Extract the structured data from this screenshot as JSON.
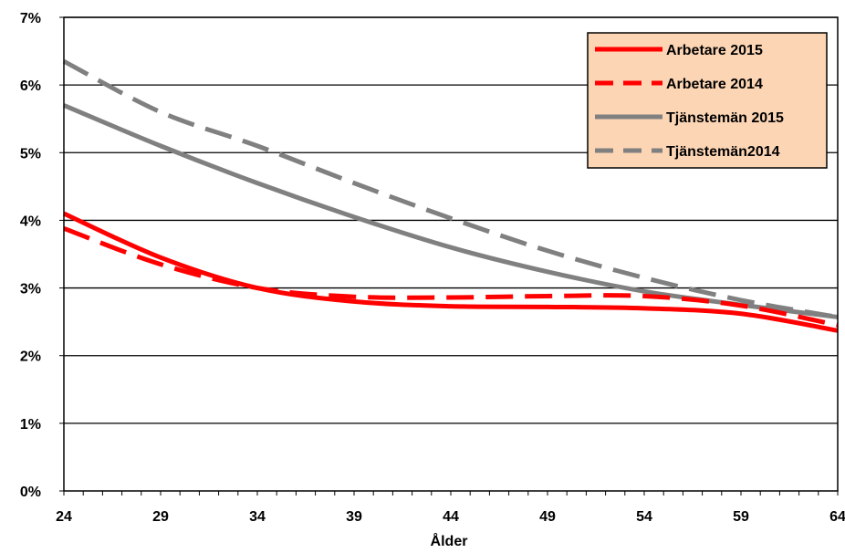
{
  "chart_data": {
    "type": "line",
    "xlabel": "Ålder",
    "ylabel": "",
    "title": "",
    "x_ticks": [
      24,
      29,
      34,
      39,
      44,
      49,
      54,
      59,
      64
    ],
    "y_ticks": [
      "0%",
      "1%",
      "2%",
      "3%",
      "4%",
      "5%",
      "6%",
      "7%"
    ],
    "xlim": [
      24,
      64
    ],
    "ylim": [
      0,
      7
    ],
    "grid": "horizontal major",
    "legend_position": "top-right",
    "x": [
      24,
      29,
      34,
      39,
      44,
      49,
      54,
      59,
      64
    ],
    "series": [
      {
        "name": "Arbetare 2015",
        "color": "#ff0000",
        "dash": "solid",
        "values": [
          4.1,
          3.45,
          3.0,
          2.8,
          2.73,
          2.72,
          2.7,
          2.62,
          2.37
        ]
      },
      {
        "name": "Arbetare 2014",
        "color": "#ff0000",
        "dash": "dashed",
        "values": [
          3.88,
          3.35,
          3.0,
          2.87,
          2.86,
          2.88,
          2.88,
          2.74,
          2.45
        ]
      },
      {
        "name": "Tjänstemän 2015",
        "color": "#808080",
        "dash": "solid",
        "values": [
          5.7,
          5.1,
          4.55,
          4.05,
          3.6,
          3.24,
          2.95,
          2.75,
          2.57
        ]
      },
      {
        "name": "Tjänstemän2014",
        "color": "#808080",
        "dash": "dashed",
        "values": [
          6.35,
          5.6,
          5.1,
          4.55,
          4.03,
          3.55,
          3.15,
          2.82,
          2.57
        ]
      }
    ],
    "legend_background": "#fcd5b4"
  }
}
